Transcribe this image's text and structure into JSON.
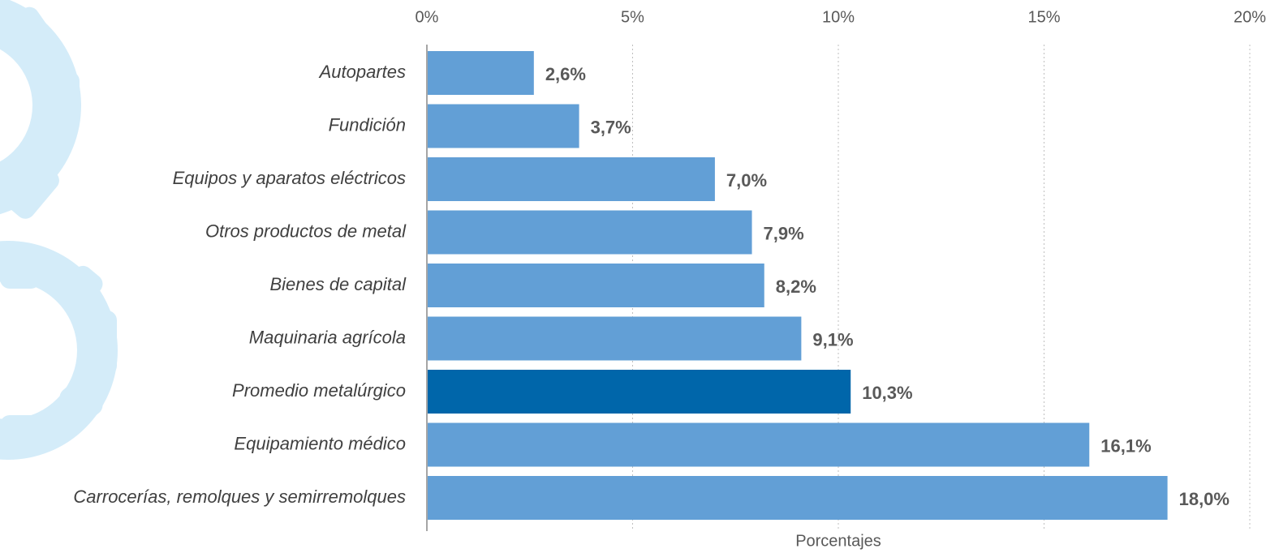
{
  "chart_data": {
    "type": "bar",
    "orientation": "horizontal",
    "x_label": "Porcentajes",
    "categories": [
      "Autopartes",
      "Fundición",
      "Equipos y aparatos eléctricos",
      "Otros productos de metal",
      "Bienes de capital",
      "Maquinaria agrícola",
      "Promedio metalúrgico",
      "Equipamiento médico",
      "Carrocerías, remolques y semirremolques"
    ],
    "values": [
      2.6,
      3.7,
      7.0,
      7.9,
      8.2,
      9.1,
      10.3,
      16.1,
      18.0
    ],
    "value_labels": [
      "2,6%",
      "3,7%",
      "7,0%",
      "7,9%",
      "8,2%",
      "9,1%",
      "10,3%",
      "16,1%",
      "18,0%"
    ],
    "colors": [
      "#629fd6",
      "#629fd6",
      "#629fd6",
      "#629fd6",
      "#629fd6",
      "#629fd6",
      "#0066aa",
      "#629fd6",
      "#629fd6"
    ],
    "xlim": [
      0,
      20
    ],
    "xticks": [
      {
        "value": 0,
        "label": "0%"
      },
      {
        "value": 5,
        "label": "5%"
      },
      {
        "value": 10,
        "label": "10%"
      },
      {
        "value": 15,
        "label": "15%"
      },
      {
        "value": 20,
        "label": "20%"
      }
    ],
    "grid": true
  }
}
